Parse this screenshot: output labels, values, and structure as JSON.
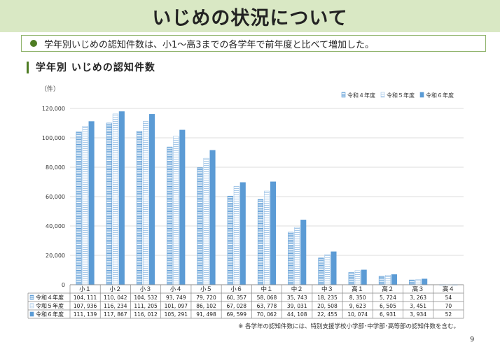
{
  "header": {
    "title": "いじめの状況について",
    "summary": "学年別いじめの認知件数は、小1～高3までの各学年で前年度と比べて増加した。",
    "section_title": "学年別 いじめの認知件数"
  },
  "footnote": "※ 各学年の認知件数には、特別支援学校小学部･中学部･高等部の認知件数を含む。",
  "page_number": "9",
  "colors": {
    "banner": "#d9e8c4",
    "accent": "#4e7c23",
    "bar": "#5b9bd5",
    "border": "#8fb36b"
  },
  "chart_data": {
    "type": "bar",
    "ylabel": "（件）",
    "ylim": [
      0,
      120000
    ],
    "yticks": [
      "0",
      "20,000",
      "40,000",
      "60,000",
      "80,000",
      "100,000",
      "120,000"
    ],
    "grid": true,
    "legend_position": "top-right",
    "categories": [
      "小１",
      "小２",
      "小３",
      "小４",
      "小５",
      "小６",
      "中１",
      "中２",
      "中３",
      "高１",
      "高２",
      "高３",
      "高４"
    ],
    "series": [
      {
        "name": "令和４年度",
        "pattern": "dense-stripes",
        "values": [
          104111,
          110042,
          104532,
          93749,
          79720,
          60357,
          58068,
          35743,
          18235,
          8350,
          5724,
          3263,
          54
        ],
        "labels": [
          "104, 111",
          "110, 042",
          "104, 532",
          "93, 749",
          "79, 720",
          "60, 357",
          "58, 068",
          "35, 743",
          "18, 235",
          "8, 350",
          "5, 724",
          "3, 263",
          "54"
        ]
      },
      {
        "name": "令和５年度",
        "pattern": "light-stripes",
        "values": [
          107936,
          116234,
          111205,
          101097,
          86102,
          67028,
          63778,
          39031,
          20508,
          9623,
          6505,
          3451,
          70
        ],
        "labels": [
          "107, 936",
          "116, 234",
          "111, 205",
          "101, 097",
          "86, 102",
          "67, 028",
          "63, 778",
          "39, 031",
          "20, 508",
          "9, 623",
          "6, 505",
          "3, 451",
          "70"
        ]
      },
      {
        "name": "令和６年度",
        "pattern": "solid",
        "values": [
          111139,
          117867,
          116012,
          105291,
          91498,
          69599,
          70062,
          44108,
          22455,
          10074,
          6931,
          3934,
          52
        ],
        "labels": [
          "111, 139",
          "117, 867",
          "116, 012",
          "105, 291",
          "91, 498",
          "69, 599",
          "70, 062",
          "44, 108",
          "22, 455",
          "10, 074",
          "6, 931",
          "3, 934",
          "52"
        ]
      }
    ]
  }
}
